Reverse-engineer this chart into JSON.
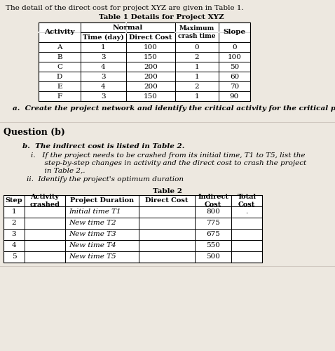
{
  "intro_text": "The detail of the direct cost for project XYZ are given in Table 1.",
  "table1_title": "Table 1 Details for Project XYZ",
  "table1_rows": [
    [
      "A",
      "1",
      "100",
      "0",
      "0"
    ],
    [
      "B",
      "3",
      "150",
      "2",
      "100"
    ],
    [
      "C",
      "4",
      "200",
      "1",
      "50"
    ],
    [
      "D",
      "3",
      "200",
      "1",
      "60"
    ],
    [
      "E",
      "4",
      "200",
      "2",
      "70"
    ],
    [
      "F",
      "3",
      "150",
      "1",
      "90"
    ]
  ],
  "question_a": "a.  Create the project network and identify the critical activity for the critical path",
  "question_b_label": "Question (b)",
  "question_b_text": "b.  The indirect cost is listed in Table 2.",
  "question_bi_line1": "i.   If the project needs to be crashed from its initial time, T1 to T5, list the",
  "question_bi_line2": "      step-by-step changes in activity and the direct cost to crash the project",
  "question_bi_line3": "      in Table 2,.",
  "question_bii": "ii.  Identify the project's optimum duration",
  "table2_title": "Table 2",
  "table2_rows": [
    [
      "1",
      "",
      "Initial time T1",
      "",
      "800",
      "."
    ],
    [
      "2",
      "",
      "New time T2",
      "",
      "775",
      ""
    ],
    [
      "3",
      "",
      "New time T3",
      "",
      "675",
      ""
    ],
    [
      "4",
      "",
      "New time T4",
      "",
      "550",
      ""
    ],
    [
      "5",
      "",
      "New time T5",
      "",
      "500",
      ""
    ]
  ],
  "bg_color": "#ede8e0",
  "text_color": "#000000",
  "font_size": 7.5
}
